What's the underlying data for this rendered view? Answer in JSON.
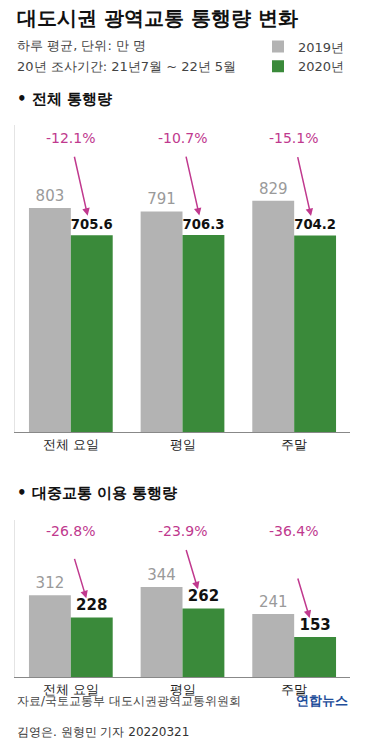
{
  "header": {
    "title": "대도시권 광역교통 통행량 변화",
    "subtitle": [
      "하루 평균, 단위: 만 명",
      "20년 조사기간: 21년7월 ~ 22년 5월"
    ]
  },
  "chart_data": [
    {
      "type": "bar",
      "title": "• 전체 통행량",
      "categories": [
        "전체 요일",
        "평일",
        "주말"
      ],
      "series": [
        {
          "name": "2019년",
          "color": "#b3b3b3",
          "values": [
            803,
            791,
            829
          ]
        },
        {
          "name": "2020년",
          "color": "#3a8a3a",
          "values": [
            705.6,
            706.3,
            704.2
          ]
        }
      ],
      "annotations": [
        {
          "category": "전체 요일",
          "text": "-12.1%"
        },
        {
          "category": "평일",
          "text": "-10.7%"
        },
        {
          "category": "주말",
          "text": "-15.1%"
        }
      ],
      "ylim": [
        0,
        1100
      ],
      "data_labels": true,
      "tick_labels": "x",
      "grid": false,
      "legend": "top-right"
    },
    {
      "type": "bar",
      "title": "• 대중교통 이용 통행량",
      "categories": [
        "전체 요일",
        "평일",
        "주말"
      ],
      "series": [
        {
          "name": "2019년",
          "color": "#b3b3b3",
          "values": [
            312,
            344,
            241
          ]
        },
        {
          "name": "2020년",
          "color": "#3a8a3a",
          "values": [
            228,
            262,
            153
          ]
        }
      ],
      "annotations": [
        {
          "category": "전체 요일",
          "text": "-26.8%"
        },
        {
          "category": "평일",
          "text": "-23.9%"
        },
        {
          "category": "주말",
          "text": "-36.4%"
        }
      ],
      "ylim": [
        0,
        600
      ],
      "data_labels": true,
      "tick_labels": "x",
      "grid": false
    }
  ],
  "footer": {
    "source": "자료/국토교통부 대도시권광역교통위원회",
    "logo": "연합뉴스",
    "credit": "김영은. 원형민 기자 20220321"
  }
}
